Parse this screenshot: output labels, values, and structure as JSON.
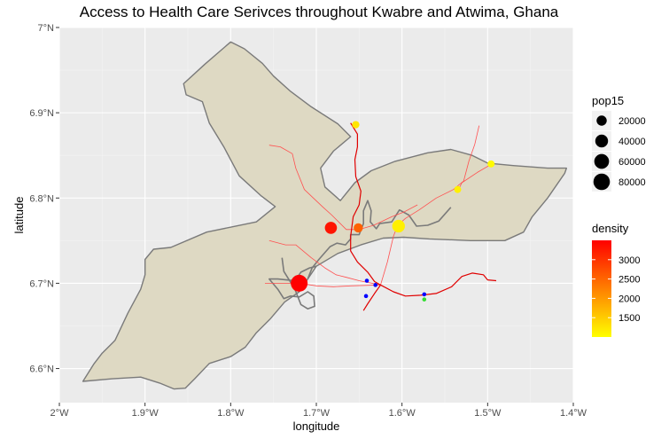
{
  "chart_data": {
    "type": "map",
    "title": "Access to Health Care Serivces throughout Kwabre and Atwima, Ghana",
    "xlabel": "longitude",
    "ylabel": "latitude",
    "xlim": [
      -2.0,
      -1.4
    ],
    "ylim": [
      6.56,
      7.0
    ],
    "x_ticks": [
      {
        "value": -2.0,
        "label": "2°W"
      },
      {
        "value": -1.9,
        "label": "1.9°W"
      },
      {
        "value": -1.8,
        "label": "1.8°W"
      },
      {
        "value": -1.7,
        "label": "1.7°W"
      },
      {
        "value": -1.6,
        "label": "1.6°W"
      },
      {
        "value": -1.5,
        "label": "1.5°W"
      },
      {
        "value": -1.4,
        "label": "1.4°W"
      }
    ],
    "y_ticks": [
      {
        "value": 6.6,
        "label": "6.6°N"
      },
      {
        "value": 6.7,
        "label": "6.7°N"
      },
      {
        "value": 6.8,
        "label": "6.8°N"
      },
      {
        "value": 6.9,
        "label": "6.9°N"
      },
      {
        "value": 7.0,
        "label": "7°N"
      }
    ],
    "grid": true,
    "colors": {
      "panel": "#ebebeb",
      "grid": "#ffffff",
      "region_fill": "#ded9c3",
      "region_stroke": "#7a7a7a",
      "road": "#ff5050",
      "main_road": "#e00000",
      "facility_blue": "#0000ff",
      "facility_green": "#33dd33"
    },
    "legend_size": {
      "title": "pop15",
      "entries": [
        {
          "value": 20000,
          "label": "20000"
        },
        {
          "value": 40000,
          "label": "40000"
        },
        {
          "value": 60000,
          "label": "60000"
        },
        {
          "value": 80000,
          "label": "80000"
        }
      ]
    },
    "legend_color": {
      "title": "density",
      "min": 1000,
      "max": 3500,
      "low_color": "#ffff00",
      "high_color": "#ff0000",
      "breaks": [
        {
          "value": 1500,
          "label": "1500"
        },
        {
          "value": 2000,
          "label": "2000"
        },
        {
          "value": 2500,
          "label": "2500"
        },
        {
          "value": 3000,
          "label": "3000"
        }
      ]
    },
    "region_polygon": [
      [
        -1.9725,
        6.585
      ],
      [
        -1.938,
        6.588
      ],
      [
        -1.905,
        6.59
      ],
      [
        -1.883,
        6.583
      ],
      [
        -1.866,
        6.576
      ],
      [
        -1.853,
        6.577
      ],
      [
        -1.842,
        6.588
      ],
      [
        -1.825,
        6.606
      ],
      [
        -1.8,
        6.614
      ],
      [
        -1.783,
        6.625
      ],
      [
        -1.77,
        6.642
      ],
      [
        -1.754,
        6.658
      ],
      [
        -1.737,
        6.678
      ],
      [
        -1.72,
        6.69
      ],
      [
        -1.71,
        6.705
      ],
      [
        -1.7,
        6.72
      ],
      [
        -1.675,
        6.735
      ],
      [
        -1.648,
        6.745
      ],
      [
        -1.622,
        6.753
      ],
      [
        -1.598,
        6.754
      ],
      [
        -1.568,
        6.752
      ],
      [
        -1.52,
        6.75
      ],
      [
        -1.48,
        6.75
      ],
      [
        -1.458,
        6.76
      ],
      [
        -1.448,
        6.778
      ],
      [
        -1.43,
        6.8
      ],
      [
        -1.41,
        6.829
      ],
      [
        -1.408,
        6.835
      ],
      [
        -1.43,
        6.835
      ],
      [
        -1.47,
        6.838
      ],
      [
        -1.5,
        6.841
      ],
      [
        -1.518,
        6.85
      ],
      [
        -1.543,
        6.857
      ],
      [
        -1.57,
        6.853
      ],
      [
        -1.608,
        6.843
      ],
      [
        -1.636,
        6.832
      ],
      [
        -1.655,
        6.818
      ],
      [
        -1.672,
        6.797
      ],
      [
        -1.69,
        6.813
      ],
      [
        -1.695,
        6.835
      ],
      [
        -1.68,
        6.855
      ],
      [
        -1.66,
        6.872
      ],
      [
        -1.675,
        6.887
      ],
      [
        -1.706,
        6.907
      ],
      [
        -1.73,
        6.925
      ],
      [
        -1.75,
        6.943
      ],
      [
        -1.763,
        6.958
      ],
      [
        -1.784,
        6.975
      ],
      [
        -1.8,
        6.983
      ],
      [
        -1.83,
        6.957
      ],
      [
        -1.855,
        6.934
      ],
      [
        -1.852,
        6.921
      ],
      [
        -1.833,
        6.913
      ],
      [
        -1.825,
        6.888
      ],
      [
        -1.808,
        6.86
      ],
      [
        -1.79,
        6.826
      ],
      [
        -1.765,
        6.803
      ],
      [
        -1.748,
        6.79
      ],
      [
        -1.77,
        6.772
      ],
      [
        -1.828,
        6.76
      ],
      [
        -1.87,
        6.742
      ],
      [
        -1.89,
        6.74
      ],
      [
        -1.9,
        6.728
      ],
      [
        -1.9,
        6.71
      ],
      [
        -1.905,
        6.693
      ],
      [
        -1.92,
        6.665
      ],
      [
        -1.935,
        6.633
      ],
      [
        -1.95,
        6.618
      ],
      [
        -1.96,
        6.605
      ]
    ],
    "inner_boundaries": [
      [
        [
          -1.71,
          6.705
        ],
        [
          -1.705,
          6.718
        ],
        [
          -1.697,
          6.728
        ],
        [
          -1.684,
          6.743
        ],
        [
          -1.676,
          6.747
        ],
        [
          -1.666,
          6.745
        ],
        [
          -1.66,
          6.752
        ],
        [
          -1.66,
          6.757
        ],
        [
          -1.65,
          6.757
        ],
        [
          -1.645,
          6.77
        ],
        [
          -1.645,
          6.785
        ],
        [
          -1.64,
          6.797
        ],
        [
          -1.636,
          6.785
        ],
        [
          -1.637,
          6.772
        ],
        [
          -1.63,
          6.764
        ],
        [
          -1.626,
          6.77
        ],
        [
          -1.612,
          6.772
        ],
        [
          -1.603,
          6.786
        ],
        [
          -1.592,
          6.78
        ],
        [
          -1.583,
          6.767
        ],
        [
          -1.57,
          6.768
        ],
        [
          -1.557,
          6.773
        ],
        [
          -1.543,
          6.789
        ]
      ],
      [
        [
          -1.7,
          6.72
        ],
        [
          -1.708,
          6.718
        ],
        [
          -1.718,
          6.713
        ],
        [
          -1.725,
          6.703
        ],
        [
          -1.735,
          6.704
        ],
        [
          -1.745,
          6.705
        ],
        [
          -1.755,
          6.705
        ],
        [
          -1.745,
          6.693
        ],
        [
          -1.738,
          6.682
        ],
        [
          -1.73,
          6.685
        ],
        [
          -1.72,
          6.684
        ],
        [
          -1.71,
          6.69
        ],
        [
          -1.703,
          6.685
        ],
        [
          -1.702,
          6.673
        ],
        [
          -1.71,
          6.67
        ],
        [
          -1.718,
          6.675
        ],
        [
          -1.725,
          6.693
        ],
        [
          -1.738,
          6.714
        ],
        [
          -1.74,
          6.73
        ]
      ]
    ],
    "roads": [
      {
        "main": false,
        "points": [
          [
            -1.755,
            6.862
          ],
          [
            -1.742,
            6.86
          ],
          [
            -1.728,
            6.852
          ],
          [
            -1.724,
            6.835
          ],
          [
            -1.714,
            6.81
          ],
          [
            -1.693,
            6.79
          ],
          [
            -1.682,
            6.78
          ],
          [
            -1.665,
            6.763
          ],
          [
            -1.65,
            6.763
          ],
          [
            -1.633,
            6.768
          ],
          [
            -1.612,
            6.778
          ],
          [
            -1.597,
            6.784
          ],
          [
            -1.582,
            6.792
          ]
        ]
      },
      {
        "main": false,
        "points": [
          [
            -1.755,
            6.75
          ],
          [
            -1.736,
            6.745
          ],
          [
            -1.724,
            6.745
          ],
          [
            -1.706,
            6.73
          ],
          [
            -1.69,
            6.718
          ],
          [
            -1.677,
            6.71
          ],
          [
            -1.665,
            6.707
          ],
          [
            -1.65,
            6.703
          ],
          [
            -1.625,
            6.698
          ]
        ]
      },
      {
        "main": false,
        "points": [
          [
            -1.76,
            6.7
          ],
          [
            -1.74,
            6.7
          ],
          [
            -1.72,
            6.7
          ],
          [
            -1.7,
            6.697
          ],
          [
            -1.68,
            6.696
          ],
          [
            -1.66,
            6.697
          ],
          [
            -1.625,
            6.698
          ]
        ]
      },
      {
        "main": false,
        "points": [
          [
            -1.625,
            6.698
          ],
          [
            -1.617,
            6.725
          ],
          [
            -1.61,
            6.755
          ],
          [
            -1.605,
            6.768
          ],
          [
            -1.596,
            6.776
          ],
          [
            -1.58,
            6.786
          ],
          [
            -1.56,
            6.8
          ],
          [
            -1.54,
            6.81
          ],
          [
            -1.528,
            6.82
          ],
          [
            -1.522,
            6.843
          ],
          [
            -1.515,
            6.863
          ],
          [
            -1.51,
            6.885
          ]
        ]
      },
      {
        "main": false,
        "points": [
          [
            -1.495,
            6.84
          ],
          [
            -1.512,
            6.83
          ],
          [
            -1.53,
            6.818
          ],
          [
            -1.535,
            6.808
          ]
        ]
      },
      {
        "main": true,
        "points": [
          [
            -1.66,
            6.888
          ],
          [
            -1.652,
            6.875
          ],
          [
            -1.652,
            6.86
          ],
          [
            -1.655,
            6.845
          ],
          [
            -1.654,
            6.825
          ],
          [
            -1.648,
            6.808
          ],
          [
            -1.65,
            6.792
          ],
          [
            -1.657,
            6.778
          ],
          [
            -1.66,
            6.755
          ],
          [
            -1.66,
            6.738
          ],
          [
            -1.652,
            6.725
          ],
          [
            -1.64,
            6.713
          ],
          [
            -1.632,
            6.702
          ],
          [
            -1.625,
            6.698
          ],
          [
            -1.632,
            6.688
          ],
          [
            -1.64,
            6.676
          ],
          [
            -1.645,
            6.668
          ]
        ]
      },
      {
        "main": true,
        "points": [
          [
            -1.625,
            6.698
          ],
          [
            -1.61,
            6.69
          ],
          [
            -1.596,
            6.685
          ],
          [
            -1.578,
            6.686
          ],
          [
            -1.56,
            6.688
          ],
          [
            -1.542,
            6.696
          ],
          [
            -1.53,
            6.708
          ],
          [
            -1.518,
            6.712
          ],
          [
            -1.505,
            6.71
          ],
          [
            -1.5,
            6.704
          ],
          [
            -1.49,
            6.703
          ]
        ]
      }
    ],
    "population_points": [
      {
        "lon": -1.72,
        "lat": 6.7,
        "pop15": 85000,
        "density": 3500
      },
      {
        "lon": -1.683,
        "lat": 6.765,
        "pop15": 34000,
        "density": 3300
      },
      {
        "lon": -1.651,
        "lat": 6.765,
        "pop15": 14000,
        "density": 2550
      },
      {
        "lon": -1.604,
        "lat": 6.767,
        "pop15": 39000,
        "density": 1150
      },
      {
        "lon": -1.654,
        "lat": 6.886,
        "pop15": 6000,
        "density": 1250
      },
      {
        "lon": -1.535,
        "lat": 6.81,
        "pop15": 5000,
        "density": 1150
      },
      {
        "lon": -1.496,
        "lat": 6.84,
        "pop15": 5000,
        "density": 1050
      }
    ],
    "facility_points": [
      {
        "lon": -1.641,
        "lat": 6.703,
        "type": "blue"
      },
      {
        "lon": -1.631,
        "lat": 6.698,
        "type": "blue"
      },
      {
        "lon": -1.642,
        "lat": 6.685,
        "type": "blue"
      },
      {
        "lon": -1.574,
        "lat": 6.687,
        "type": "blue"
      },
      {
        "lon": -1.574,
        "lat": 6.681,
        "type": "green"
      }
    ]
  }
}
